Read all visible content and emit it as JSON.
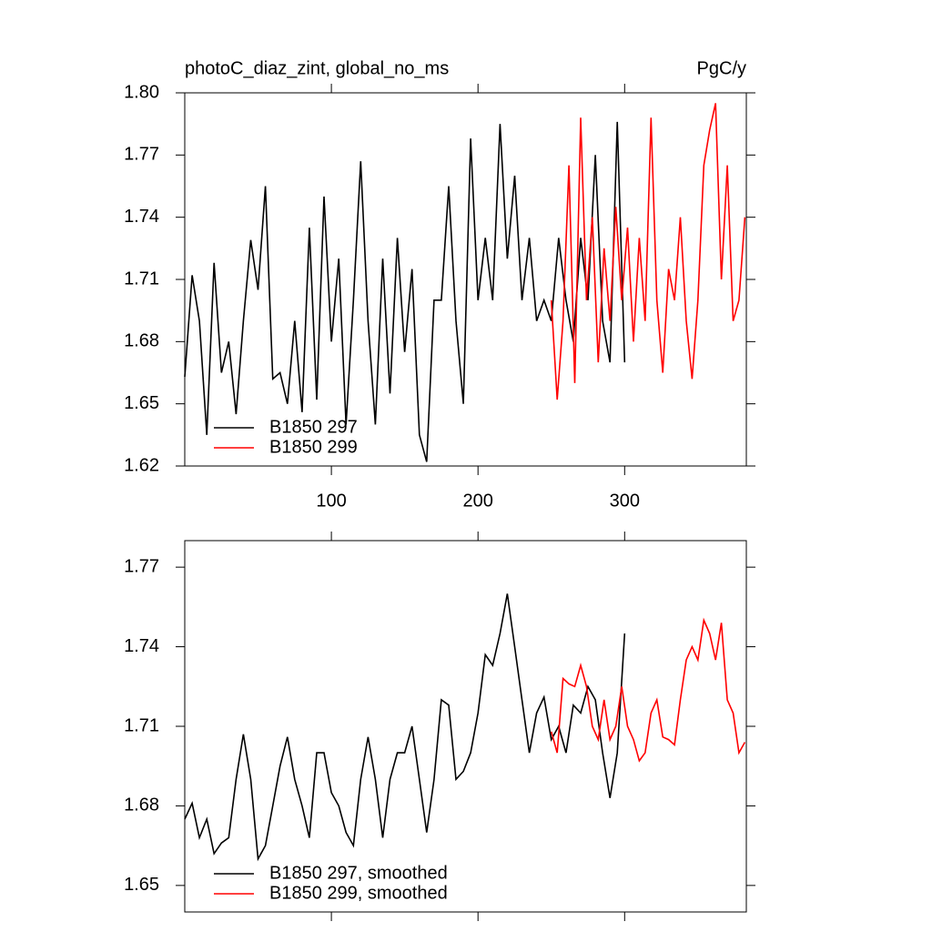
{
  "chart_data": [
    {
      "type": "line",
      "title": "photoC_diaz_zint, global_no_ms",
      "units": "PgC/y",
      "xlim": [
        0,
        383
      ],
      "xticks": [
        100,
        200,
        300
      ],
      "ylim": [
        1.62,
        1.8
      ],
      "yticks": [
        {
          "value": 1.62,
          "label": "1.62"
        },
        {
          "value": 1.65,
          "label": "1.65"
        },
        {
          "value": 1.68,
          "label": "1.68"
        },
        {
          "value": 1.71,
          "label": "1.71"
        },
        {
          "value": 1.74,
          "label": "1.74"
        },
        {
          "value": 1.77,
          "label": "1.77"
        },
        {
          "value": 1.8,
          "label": "1.80"
        }
      ],
      "legend": "lower-left",
      "series": [
        {
          "name": "B1850 297",
          "color": "#000000",
          "x": [
            0,
            5,
            10,
            15,
            20,
            25,
            30,
            35,
            40,
            45,
            50,
            55,
            60,
            65,
            70,
            75,
            80,
            85,
            90,
            95,
            100,
            105,
            110,
            115,
            120,
            125,
            130,
            135,
            140,
            145,
            150,
            155,
            160,
            165,
            170,
            175,
            180,
            185,
            190,
            195,
            200,
            205,
            210,
            215,
            220,
            225,
            230,
            235,
            240,
            245,
            250,
            255,
            260,
            265,
            270,
            275,
            280,
            285,
            290,
            295,
            300
          ],
          "values": [
            1.663,
            1.712,
            1.69,
            1.635,
            1.718,
            1.665,
            1.68,
            1.645,
            1.69,
            1.729,
            1.705,
            1.755,
            1.662,
            1.665,
            1.65,
            1.69,
            1.646,
            1.735,
            1.652,
            1.75,
            1.68,
            1.72,
            1.64,
            1.7,
            1.767,
            1.69,
            1.64,
            1.72,
            1.655,
            1.73,
            1.675,
            1.715,
            1.635,
            1.622,
            1.7,
            1.7,
            1.755,
            1.69,
            1.65,
            1.778,
            1.7,
            1.73,
            1.7,
            1.785,
            1.72,
            1.76,
            1.7,
            1.73,
            1.69,
            1.7,
            1.69,
            1.73,
            1.7,
            1.68,
            1.73,
            1.7,
            1.77,
            1.69,
            1.67,
            1.786,
            1.67
          ]
        },
        {
          "name": "B1850 299",
          "color": "#ff0000",
          "x": [
            250,
            254,
            258,
            262,
            266,
            270,
            274,
            278,
            282,
            286,
            290,
            294,
            298,
            302,
            306,
            310,
            314,
            318,
            322,
            326,
            330,
            334,
            338,
            342,
            346,
            350,
            354,
            358,
            362,
            366,
            370,
            374,
            378,
            382
          ],
          "values": [
            1.7,
            1.652,
            1.69,
            1.765,
            1.66,
            1.788,
            1.7,
            1.74,
            1.67,
            1.725,
            1.69,
            1.745,
            1.7,
            1.735,
            1.68,
            1.73,
            1.69,
            1.788,
            1.7,
            1.665,
            1.715,
            1.7,
            1.74,
            1.69,
            1.662,
            1.7,
            1.765,
            1.782,
            1.795,
            1.71,
            1.765,
            1.69,
            1.7,
            1.74
          ]
        }
      ]
    },
    {
      "type": "line",
      "xlim": [
        0,
        383
      ],
      "xticks": [
        100,
        200,
        300
      ],
      "ylim": [
        1.64,
        1.78
      ],
      "yticks": [
        1.65,
        1.68,
        1.71,
        1.74,
        1.77
      ],
      "legend": "lower-left",
      "series": [
        {
          "name": "B1850 297, smoothed",
          "color": "#000000",
          "x": [
            0,
            5,
            10,
            15,
            20,
            25,
            30,
            35,
            40,
            45,
            50,
            55,
            60,
            65,
            70,
            75,
            80,
            85,
            90,
            95,
            100,
            105,
            110,
            115,
            120,
            125,
            130,
            135,
            140,
            145,
            150,
            155,
            160,
            165,
            170,
            175,
            180,
            185,
            190,
            195,
            200,
            205,
            210,
            215,
            220,
            225,
            230,
            235,
            240,
            245,
            250,
            255,
            260,
            265,
            270,
            275,
            280,
            285,
            290,
            295,
            300
          ],
          "values": [
            1.675,
            1.681,
            1.668,
            1.675,
            1.662,
            1.666,
            1.668,
            1.69,
            1.707,
            1.69,
            1.66,
            1.665,
            1.68,
            1.695,
            1.706,
            1.69,
            1.68,
            1.668,
            1.7,
            1.7,
            1.685,
            1.68,
            1.67,
            1.665,
            1.69,
            1.706,
            1.69,
            1.668,
            1.69,
            1.7,
            1.7,
            1.71,
            1.69,
            1.67,
            1.69,
            1.72,
            1.718,
            1.69,
            1.693,
            1.7,
            1.715,
            1.737,
            1.733,
            1.745,
            1.76,
            1.74,
            1.72,
            1.7,
            1.715,
            1.721,
            1.705,
            1.71,
            1.7,
            1.718,
            1.715,
            1.725,
            1.72,
            1.7,
            1.683,
            1.7,
            1.745
          ]
        },
        {
          "name": "B1850 299, smoothed",
          "color": "#ff0000",
          "x": [
            250,
            254,
            258,
            262,
            266,
            270,
            274,
            278,
            282,
            286,
            290,
            294,
            298,
            302,
            306,
            310,
            314,
            318,
            322,
            326,
            330,
            334,
            338,
            342,
            346,
            350,
            354,
            358,
            362,
            366,
            370,
            374,
            378,
            382
          ],
          "values": [
            1.708,
            1.7,
            1.728,
            1.726,
            1.725,
            1.733,
            1.725,
            1.71,
            1.705,
            1.72,
            1.705,
            1.71,
            1.725,
            1.71,
            1.705,
            1.697,
            1.7,
            1.715,
            1.72,
            1.706,
            1.705,
            1.703,
            1.72,
            1.735,
            1.74,
            1.735,
            1.75,
            1.745,
            1.735,
            1.749,
            1.72,
            1.715,
            1.7,
            1.704
          ]
        }
      ]
    }
  ]
}
